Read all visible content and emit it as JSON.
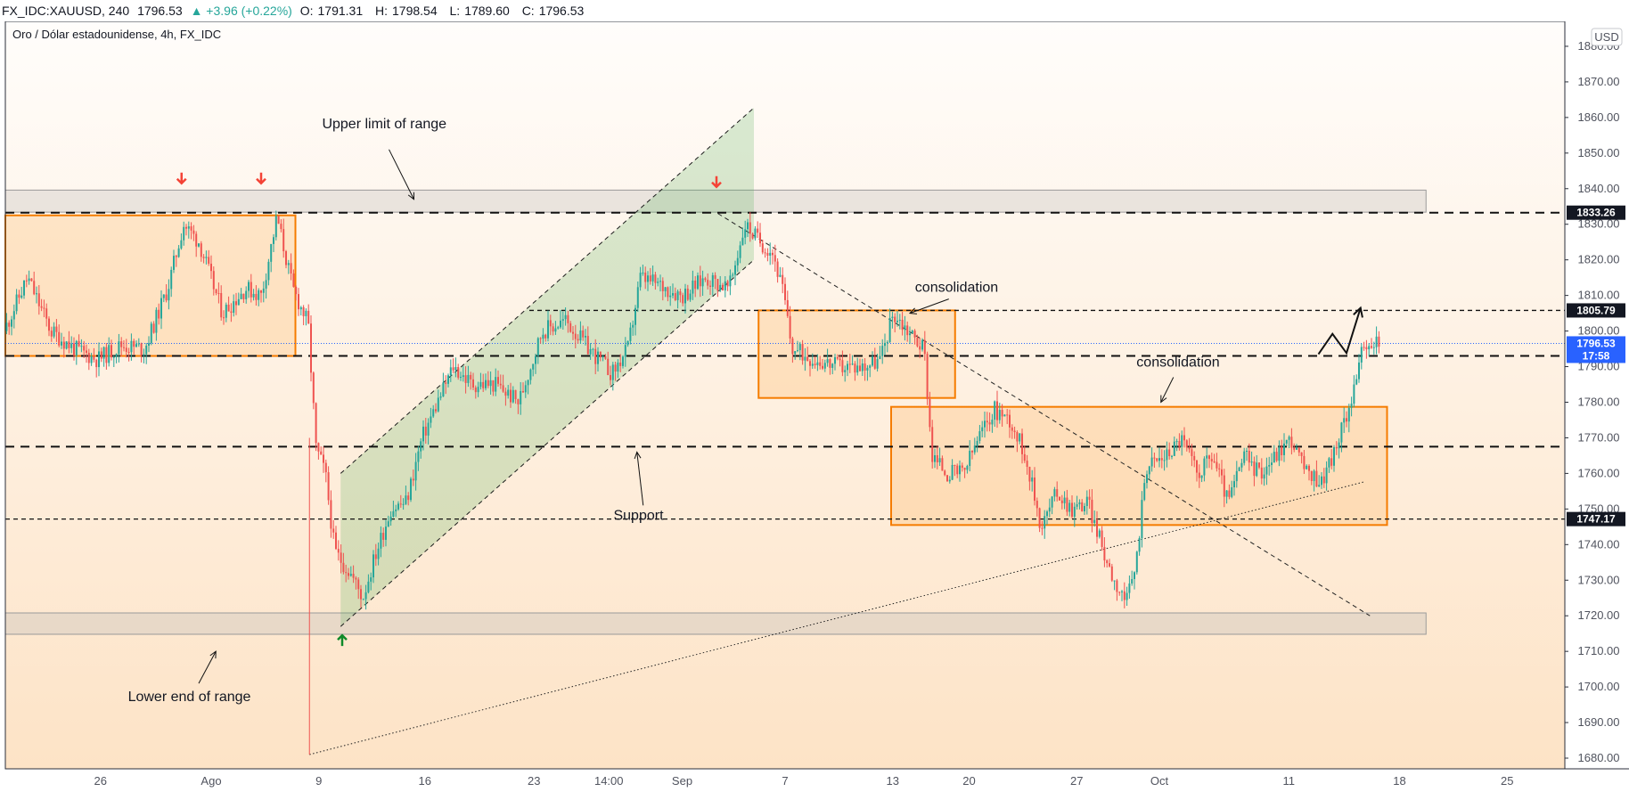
{
  "header": {
    "symbol": "FX_IDC:XAUUSD, 240",
    "last": "1796.53",
    "change": "▲ +3.96 (+0.22%)",
    "open_label": "O:",
    "open": "1791.31",
    "high_label": "H:",
    "high": "1798.54",
    "low_label": "L:",
    "low": "1789.60",
    "close_label": "C:",
    "close": "1796.53"
  },
  "legend": "Oro / Dólar estadounidense, 4h, FX_IDC",
  "currency": "USD",
  "countdown": "17:58",
  "chart_data": {
    "type": "candlestick",
    "ylim": [
      1677,
      1887
    ],
    "xlim": [
      0,
      100
    ],
    "y_ticks": [
      1680,
      1690,
      1700,
      1710,
      1720,
      1730,
      1740,
      1750,
      1760,
      1770,
      1780,
      1790,
      1800,
      1810,
      1820,
      1830,
      1840,
      1850,
      1860,
      1870,
      1880
    ],
    "x_ticks": [
      {
        "t": 6.1,
        "label": "26"
      },
      {
        "t": 13.2,
        "label": "Ago"
      },
      {
        "t": 20.1,
        "label": "9"
      },
      {
        "t": 26.9,
        "label": "16"
      },
      {
        "t": 33.9,
        "label": "23"
      },
      {
        "t": 38.7,
        "label": "14:00"
      },
      {
        "t": 43.4,
        "label": "Sep"
      },
      {
        "t": 50.0,
        "label": "7"
      },
      {
        "t": 56.9,
        "label": "13"
      },
      {
        "t": 61.8,
        "label": "20"
      },
      {
        "t": 68.7,
        "label": "27"
      },
      {
        "t": 74.0,
        "label": "Oct"
      },
      {
        "t": 82.3,
        "label": "11"
      },
      {
        "t": 89.4,
        "label": "18"
      },
      {
        "t": 96.3,
        "label": "25"
      }
    ],
    "price_path": [
      [
        0.0,
        1800
      ],
      [
        1.5,
        1815
      ],
      [
        3.0,
        1800
      ],
      [
        4.5,
        1795
      ],
      [
        6.0,
        1792
      ],
      [
        7.5,
        1796
      ],
      [
        9.0,
        1795
      ],
      [
        10.5,
        1812
      ],
      [
        11.5,
        1830
      ],
      [
        12.5,
        1825
      ],
      [
        14.0,
        1805
      ],
      [
        15.5,
        1812
      ],
      [
        16.5,
        1810
      ],
      [
        17.5,
        1832
      ],
      [
        18.5,
        1812
      ],
      [
        19.5,
        1802
      ],
      [
        20.0,
        1767
      ],
      [
        20.6,
        1760
      ],
      [
        21.2,
        1738
      ],
      [
        22.2,
        1732
      ],
      [
        23.0,
        1725
      ],
      [
        23.8,
        1737
      ],
      [
        24.8,
        1750
      ],
      [
        25.8,
        1752
      ],
      [
        26.8,
        1770
      ],
      [
        27.8,
        1780
      ],
      [
        28.8,
        1790
      ],
      [
        30.0,
        1785
      ],
      [
        31.5,
        1785
      ],
      [
        33.0,
        1780
      ],
      [
        34.5,
        1800
      ],
      [
        36.0,
        1803
      ],
      [
        37.5,
        1795
      ],
      [
        39.0,
        1788
      ],
      [
        40.0,
        1795
      ],
      [
        40.8,
        1815
      ],
      [
        42.0,
        1813
      ],
      [
        43.5,
        1810
      ],
      [
        45.0,
        1815
      ],
      [
        46.5,
        1812
      ],
      [
        47.5,
        1830
      ],
      [
        48.5,
        1825
      ],
      [
        49.3,
        1822
      ],
      [
        50.0,
        1810
      ],
      [
        50.5,
        1795
      ],
      [
        52.0,
        1792
      ],
      [
        53.5,
        1790
      ],
      [
        55.0,
        1790
      ],
      [
        56.2,
        1792
      ],
      [
        57.0,
        1805
      ],
      [
        58.0,
        1800
      ],
      [
        59.0,
        1795
      ],
      [
        59.5,
        1765
      ],
      [
        60.5,
        1760
      ],
      [
        61.5,
        1760
      ],
      [
        62.5,
        1770
      ],
      [
        63.5,
        1778
      ],
      [
        64.5,
        1775
      ],
      [
        65.5,
        1765
      ],
      [
        66.5,
        1745
      ],
      [
        67.5,
        1755
      ],
      [
        68.5,
        1750
      ],
      [
        69.5,
        1752
      ],
      [
        70.5,
        1738
      ],
      [
        71.2,
        1730
      ],
      [
        72.0,
        1724
      ],
      [
        72.6,
        1735
      ],
      [
        73.2,
        1762
      ],
      [
        74.5,
        1765
      ],
      [
        75.5,
        1770
      ],
      [
        76.5,
        1760
      ],
      [
        77.5,
        1765
      ],
      [
        78.5,
        1752
      ],
      [
        79.5,
        1765
      ],
      [
        80.5,
        1760
      ],
      [
        81.5,
        1765
      ],
      [
        82.5,
        1770
      ],
      [
        83.5,
        1760
      ],
      [
        84.5,
        1758
      ],
      [
        85.5,
        1768
      ],
      [
        86.3,
        1780
      ],
      [
        87.0,
        1793
      ],
      [
        88.0,
        1797
      ]
    ],
    "annotations": {
      "texts": [
        {
          "label": "Upper limit of range",
          "t": 24.3,
          "p": 1857
        },
        {
          "label": "consolidation",
          "t": 61.0,
          "p": 1811
        },
        {
          "label": "consolidation",
          "t": 75.2,
          "p": 1790
        },
        {
          "label": "Support",
          "t": 40.6,
          "p": 1747
        },
        {
          "label": "Lower end of range",
          "t": 11.8,
          "p": 1696
        }
      ],
      "arrows": [
        {
          "t1": 24.6,
          "p1": 1851,
          "t2": 26.2,
          "p2": 1837
        },
        {
          "t1": 60.5,
          "p1": 1809,
          "t2": 58.0,
          "p2": 1805
        },
        {
          "t1": 74.9,
          "p1": 1787,
          "t2": 74.1,
          "p2": 1780
        },
        {
          "t1": 40.9,
          "p1": 1751,
          "t2": 40.5,
          "p2": 1766
        },
        {
          "t1": 12.4,
          "p1": 1701,
          "t2": 13.5,
          "p2": 1710
        }
      ],
      "horizontal_levels": [
        {
          "p": 1833.26,
          "style": "long-dash",
          "badge": "1833.26"
        },
        {
          "p": 1805.79,
          "style": "short-dash",
          "badge": "1805.79",
          "t_from": 33.6
        },
        {
          "p": 1793.0,
          "style": "long-dash"
        },
        {
          "p": 1767.5,
          "style": "long-dash"
        },
        {
          "p": 1747.17,
          "style": "short-dash",
          "badge": "1747.17"
        }
      ],
      "zones": [
        {
          "t1": 0.0,
          "t2": 91.1,
          "p1": 1833.4,
          "p2": 1839.6,
          "kind": "range-band"
        },
        {
          "t1": 0.0,
          "t2": 91.1,
          "p1": 1714.8,
          "p2": 1720.8,
          "kind": "range-band"
        },
        {
          "t1": 0.0,
          "t2": 18.6,
          "p1": 1793.0,
          "p2": 1832.5,
          "kind": "consolidation-box"
        },
        {
          "t1": 48.3,
          "t2": 60.9,
          "p1": 1781.2,
          "p2": 1805.8,
          "kind": "consolidation-box"
        },
        {
          "t1": 56.8,
          "t2": 88.6,
          "p1": 1745.5,
          "p2": 1778.7,
          "kind": "consolidation-box"
        }
      ],
      "channel": [
        [
          21.5,
          1760
        ],
        [
          48.0,
          1862.7
        ],
        [
          48.0,
          1820
        ],
        [
          21.5,
          1717
        ]
      ],
      "trendlines": [
        {
          "t1": 45.7,
          "p1": 1833,
          "t2": 87.5,
          "p2": 1720,
          "style": "dashed"
        },
        {
          "t1": 19.5,
          "p1": 1681,
          "t2": 87.1,
          "p2": 1757.6,
          "style": "dotted"
        }
      ],
      "last_price_line": 1796.53,
      "projection": [
        [
          84.2,
          1793.5
        ],
        [
          85.1,
          1799.2
        ],
        [
          86.0,
          1793.8
        ],
        [
          86.9,
          1806.5
        ]
      ],
      "red_arrows": [
        {
          "t": 11.3,
          "p": 1843
        },
        {
          "t": 16.4,
          "p": 1843
        },
        {
          "t": 45.6,
          "p": 1842
        }
      ],
      "green_arrows": [
        {
          "t": 21.6,
          "p": 1713
        }
      ]
    }
  }
}
